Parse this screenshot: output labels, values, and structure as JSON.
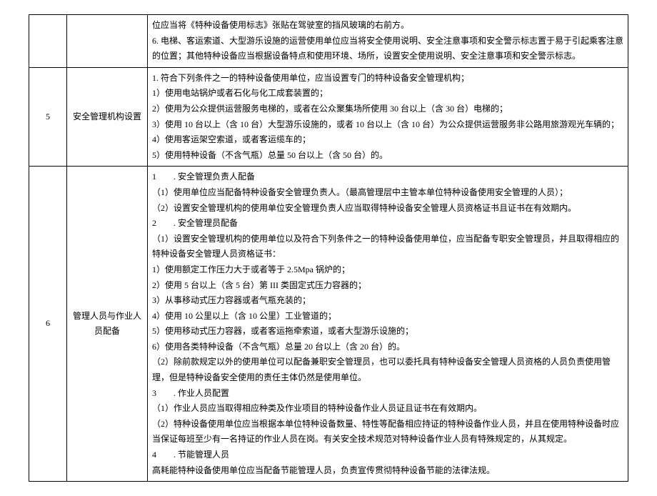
{
  "rows": [
    {
      "num": "",
      "title": "",
      "lines": [
        "位应当将《特种设备使用标志》张贴在驾驶室的挡风玻璃的右前方。",
        "6. 电梯、客运索道、大型游乐设施的运营使用单位应当将安全使用说明、安全注意事项和安全警示标志置于易于引起乘客注意的位置；其他特种设备应当根据设备特点和使用环境、场所，设置安全使用说明、安全注意事项和安全警示标志。"
      ]
    },
    {
      "num": "5",
      "title": "安全管理机构设置",
      "lines": [
        "1. 符合下列条件之一的特种设备使用单位，应当设置专门的特种设备安全管理机构；",
        "1）使用电站锅炉或者石化与化工成套装置的；",
        "2）使用为公众提供运营服务电梯的，或者在公众聚集场所使用 30 台以上（含 30 台）电梯的；",
        "3）使用 10 台以上（含 10 台）大型游乐设施的，或者 10 台以上（含 10 台）为公众提供运营服务非公路用旅游观光车辆的；4）使用客运架空索道，或者客运缆车的；",
        "5）使用特种设备（不含气瓶）总量 50 台以上（含 50 台）的。"
      ]
    },
    {
      "num": "6",
      "title": "管理人员与作业人员配备",
      "lines": [
        "1　　. 安全管理负责人配备",
        "（1）使用单位应当配备特种设备安全管理负责人。（最高管理层中主管本单位特种设备使用安全管理的人员）；",
        "（2）设置安全管理机构的使用单位安全管理负责人应当取得特种设备安全管理人员资格证书且证书在有效期内。",
        "2　　. 安全管理员配备",
        "（1）设置安全管理机构的使用单位以及符合下列条件之一的特种设备使用单位，应当配备专职安全管理员，并且取得相应的特种设备安全管理人员资格证书：",
        "1）使用额定工作压力大于或者等于 2.5Mpa 锅炉的；",
        "2）使用 5 台以上（含 5 台）第 III 类固定式压力容器的；",
        "3）从事移动式压力容器或者气瓶充装的；",
        "4）使用 10 公里以上（含 10 公里）工业管道的；",
        "5）使用移动式压力容器，或者客运拖牵索道，或者大型游乐设施的；",
        "6）使用各类特种设备（不含气瓶）总量 20 台以上（含 20 台）的。",
        "（2）除前款规定以外的使用单位可以配备兼职安全管理员，也可以委托具有特种设备安全管理人员资格的人员负责使用管理，但是特种设备安全使用的责任主体仍然是使用单位。",
        "3　　. 作业人员配置",
        "（1）作业人员应当取得相应种类及作业项目的特种设备作业人员证且证书在有效期内。",
        "（2）特种设备使用单位应当根据本单位特种设备数量、特性等配备相应持证的特种设备作业人员，并且在使用特种设备时应当保证每班至少有一名持证的作业人员在岗。有关安全技术规范对特种设备作业人员有特殊规定的，从其规定。",
        "4　　. 节能管理人员",
        "高耗能特种设备使用单位应当配备节能管理人员，负责宣传贯彻特种设备节能的法律法规。"
      ]
    }
  ]
}
